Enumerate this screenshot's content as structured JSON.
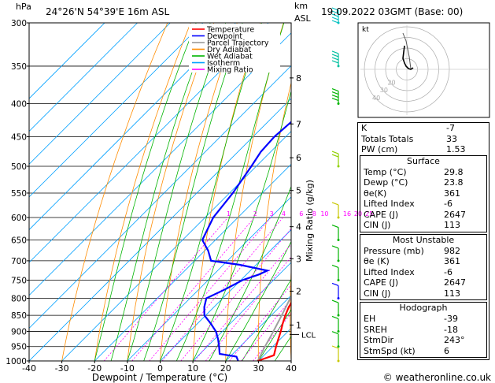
{
  "header": {
    "hpa_label": "hPa",
    "location": "24°26'N  54°39'E  16m  ASL",
    "km_label": "km",
    "asl_label": "ASL",
    "datetime": "19.09.2022  03GMT  (Base: 00)",
    "credit": "© weatheronline.co.uk"
  },
  "legend": [
    {
      "label": "Temperature",
      "color": "#ff0000"
    },
    {
      "label": "Dewpoint",
      "color": "#0000ff"
    },
    {
      "label": "Parcel Trajectory",
      "color": "#999999"
    },
    {
      "label": "Dry Adiabat",
      "color": "#ff8c00"
    },
    {
      "label": "Wet Adiabat",
      "color": "#00b400"
    },
    {
      "label": "Isotherm",
      "color": "#00a0ff"
    },
    {
      "label": "Mixing Ratio",
      "color": "#ff00ff"
    }
  ],
  "colors": {
    "temperature": "#ff0000",
    "dewpoint": "#0000ff",
    "parcel": "#a0a0a0",
    "dry_adiabat": "#ff8c00",
    "wet_adiabat": "#00b400",
    "isotherm": "#00a0ff",
    "mixing_ratio": "#ff00ff"
  },
  "chart_data": {
    "type": "line",
    "xlabel": "Dewpoint / Temperature (°C)",
    "ylabel": "Mixing Ratio (g/kg)",
    "x_ticks": [
      "-40",
      "-30",
      "-20",
      "-10",
      "0",
      "10",
      "20",
      "30",
      "40"
    ],
    "pressure_levels": [
      "300",
      "350",
      "400",
      "450",
      "500",
      "550",
      "600",
      "650",
      "700",
      "750",
      "800",
      "850",
      "900",
      "950",
      "1000"
    ],
    "km_ticks": [
      {
        "p": 365,
        "label": "8"
      },
      {
        "p": 430,
        "label": "7"
      },
      {
        "p": 485,
        "label": "6"
      },
      {
        "p": 545,
        "label": "5"
      },
      {
        "p": 620,
        "label": "4"
      },
      {
        "p": 695,
        "label": "3"
      },
      {
        "p": 780,
        "label": "2"
      },
      {
        "p": 880,
        "label": "1"
      }
    ],
    "lcl_label": "LCL",
    "lcl_p": 910,
    "mixing_ratio_labels": [
      "1",
      "2",
      "3",
      "4",
      "6",
      "8",
      "10",
      "16",
      "20",
      "25"
    ],
    "xlim": [
      -40,
      40
    ],
    "plim": [
      300,
      1000
    ],
    "series": [
      {
        "name": "Temperature",
        "points": [
          [
            1000,
            29.8
          ],
          [
            980,
            33.0
          ],
          [
            950,
            31.0
          ],
          [
            925,
            29.4
          ],
          [
            900,
            27.8
          ],
          [
            875,
            26.0
          ],
          [
            850,
            24.3
          ],
          [
            825,
            22.8
          ],
          [
            800,
            21.8
          ],
          [
            775,
            20.0
          ],
          [
            750,
            17.5
          ],
          [
            725,
            16.0
          ],
          [
            700,
            14.8
          ],
          [
            650,
            11.6
          ],
          [
            600,
            8.2
          ],
          [
            550,
            4.0
          ],
          [
            500,
            -1.0
          ],
          [
            450,
            -6.6
          ],
          [
            400,
            -13.6
          ],
          [
            350,
            -21.8
          ],
          [
            300,
            -31.0
          ]
        ]
      },
      {
        "name": "Dewpoint",
        "points": [
          [
            1000,
            23.8
          ],
          [
            985,
            22.0
          ],
          [
            975,
            16.0
          ],
          [
            950,
            13.6
          ],
          [
            925,
            11.0
          ],
          [
            900,
            8.0
          ],
          [
            875,
            4.0
          ],
          [
            850,
            -0.4
          ],
          [
            825,
            -3.0
          ],
          [
            800,
            -5.0
          ],
          [
            775,
            -2.0
          ],
          [
            750,
            0.5
          ],
          [
            735,
            3.8
          ],
          [
            725,
            5.2
          ],
          [
            710,
            -5.0
          ],
          [
            700,
            -15.0
          ],
          [
            675,
            -19.0
          ],
          [
            650,
            -24.0
          ],
          [
            600,
            -27.5
          ],
          [
            550,
            -29.0
          ],
          [
            500,
            -31.5
          ],
          [
            475,
            -33.0
          ],
          [
            450,
            -33.5
          ],
          [
            400,
            -32.0
          ],
          [
            350,
            -38.5
          ],
          [
            300,
            -48.5
          ]
        ]
      },
      {
        "name": "Parcel Trajectory",
        "points": [
          [
            1000,
            29.8
          ],
          [
            950,
            27.6
          ],
          [
            910,
            26.0
          ],
          [
            850,
            23.2
          ],
          [
            800,
            20.6
          ],
          [
            750,
            18.0
          ],
          [
            700,
            15.0
          ],
          [
            650,
            12.0
          ],
          [
            600,
            9.0
          ],
          [
            550,
            5.4
          ],
          [
            500,
            1.6
          ],
          [
            450,
            -2.5
          ],
          [
            400,
            -7.5
          ],
          [
            350,
            -14.0
          ],
          [
            300,
            -22.0
          ]
        ]
      }
    ],
    "wind_barbs": [
      {
        "p": 1000,
        "color": "#c8c800",
        "dir": 243,
        "speed": 6
      },
      {
        "p": 950,
        "color": "#00b400",
        "dir": 240,
        "speed": 6
      },
      {
        "p": 900,
        "color": "#00b400",
        "dir": 230,
        "speed": 5
      },
      {
        "p": 850,
        "color": "#00b400",
        "dir": 220,
        "speed": 5
      },
      {
        "p": 800,
        "color": "#0000ff",
        "dir": 200,
        "speed": 5
      },
      {
        "p": 750,
        "color": "#00b400",
        "dir": 180,
        "speed": 5
      },
      {
        "p": 700,
        "color": "#00b400",
        "dir": 170,
        "speed": 5
      },
      {
        "p": 650,
        "color": "#00b400",
        "dir": 160,
        "speed": 5
      },
      {
        "p": 600,
        "color": "#c8c800",
        "dir": 150,
        "speed": 5
      },
      {
        "p": 500,
        "color": "#90d000",
        "dir": 60,
        "speed": 10
      },
      {
        "p": 400,
        "color": "#00b400",
        "dir": 80,
        "speed": 20
      },
      {
        "p": 350,
        "color": "#00c0a0",
        "dir": 90,
        "speed": 20
      },
      {
        "p": 300,
        "color": "#00c0c0",
        "dir": 80,
        "speed": 25
      }
    ]
  },
  "hodograph": {
    "label": "kt",
    "ring_labels": [
      "40",
      "30",
      "20"
    ]
  },
  "indices": {
    "rows": [
      {
        "label": "K",
        "value": "-7"
      },
      {
        "label": "Totals Totals",
        "value": "33"
      },
      {
        "label": "PW (cm)",
        "value": "1.53"
      }
    ]
  },
  "surface": {
    "title": "Surface",
    "rows": [
      {
        "label": "Temp (°C)",
        "value": "29.8"
      },
      {
        "label": "Dewp (°C)",
        "value": "23.8"
      },
      {
        "label": "θe(K)",
        "value": "361"
      },
      {
        "label": "Lifted Index",
        "value": "-6"
      },
      {
        "label": "CAPE (J)",
        "value": "2647"
      },
      {
        "label": "CIN (J)",
        "value": "113"
      }
    ]
  },
  "most_unstable": {
    "title": "Most Unstable",
    "rows": [
      {
        "label": "Pressure (mb)",
        "value": "982"
      },
      {
        "label": "θe (K)",
        "value": "361"
      },
      {
        "label": "Lifted Index",
        "value": "-6"
      },
      {
        "label": "CAPE (J)",
        "value": "2647"
      },
      {
        "label": "CIN (J)",
        "value": "113"
      }
    ]
  },
  "hodograph_table": {
    "title": "Hodograph",
    "rows": [
      {
        "label": "EH",
        "value": "-39"
      },
      {
        "label": "SREH",
        "value": "-18"
      },
      {
        "label": "StmDir",
        "value": "243°"
      },
      {
        "label": "StmSpd (kt)",
        "value": "6"
      }
    ]
  }
}
